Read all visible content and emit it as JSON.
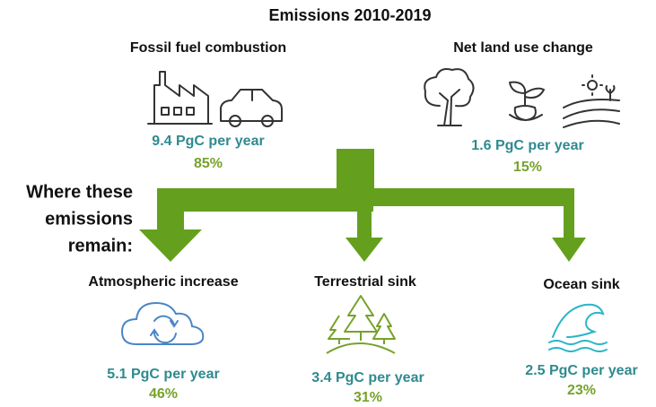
{
  "title": "Emissions 2010-2019",
  "sources": [
    {
      "label": "Fossil fuel combustion",
      "amount": "9.4 PgC per year",
      "share": "85%"
    },
    {
      "label": "Net land use change",
      "amount": "1.6 PgC per year",
      "share": "15%"
    }
  ],
  "remain_label": [
    "Where these",
    "emissions",
    "remain:"
  ],
  "sinks": [
    {
      "label": "Atmospheric increase",
      "amount": "5.1 PgC per year",
      "share": "46%"
    },
    {
      "label": "Terrestrial sink",
      "amount": "3.4 PgC per year",
      "share": "31%"
    },
    {
      "label": "Ocean sink",
      "amount": "2.5 PgC per year",
      "share": "23%"
    }
  ]
}
